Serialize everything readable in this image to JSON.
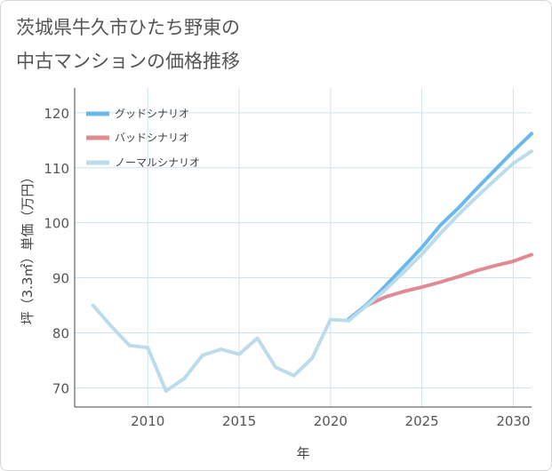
{
  "title": {
    "line1": "茨城県牛久市ひたち野東の",
    "line2": "中古マンションの価格推移"
  },
  "colors": {
    "good": "#6bb8ec",
    "bad": "#e08b94",
    "normal": "#bcdcec",
    "grid": "#cfe3ec",
    "axis": "#444444"
  },
  "chart_data": {
    "type": "line",
    "title": "茨城県牛久市ひたち野東の中古マンションの価格推移",
    "xlabel": "年",
    "ylabel": "坪（3.3㎡）単価（万円）",
    "xlim": [
      2006,
      2031
    ],
    "ylim": [
      66.5,
      124.5
    ],
    "x_ticks": [
      2010,
      2015,
      2020,
      2025,
      2030
    ],
    "y_ticks": [
      70,
      80,
      90,
      100,
      110,
      120
    ],
    "legend_position": "top-left",
    "series": [
      {
        "key": "good",
        "name": "グッドシナリオ",
        "x": [
          2021,
          2022,
          2023,
          2024,
          2025,
          2026,
          2027,
          2028,
          2029,
          2030,
          2031
        ],
        "values": [
          82.5,
          85.2,
          88.5,
          92.0,
          95.5,
          99.5,
          102.7,
          106.2,
          109.6,
          113.0,
          116.2
        ]
      },
      {
        "key": "bad",
        "name": "バッドシナリオ",
        "x": [
          2021,
          2022,
          2023,
          2024,
          2025,
          2026,
          2027,
          2028,
          2029,
          2030,
          2031
        ],
        "values": [
          82.5,
          85.0,
          86.5,
          87.5,
          88.3,
          89.2,
          90.2,
          91.3,
          92.2,
          93.0,
          94.2
        ]
      },
      {
        "key": "normal",
        "name": "ノーマルシナリオ",
        "x": [
          2007,
          2008,
          2009,
          2010,
          2011,
          2012,
          2013,
          2014,
          2015,
          2016,
          2017,
          2018,
          2019,
          2020,
          2021,
          2022,
          2023,
          2024,
          2025,
          2026,
          2027,
          2028,
          2029,
          2030,
          2031
        ],
        "values": [
          85.0,
          81.2,
          77.7,
          77.3,
          69.4,
          71.7,
          75.9,
          77.0,
          76.1,
          79.0,
          73.7,
          72.2,
          75.4,
          82.4,
          82.2,
          85.0,
          87.8,
          91.0,
          94.3,
          98.0,
          101.5,
          104.7,
          107.8,
          110.8,
          113.0
        ]
      }
    ]
  }
}
